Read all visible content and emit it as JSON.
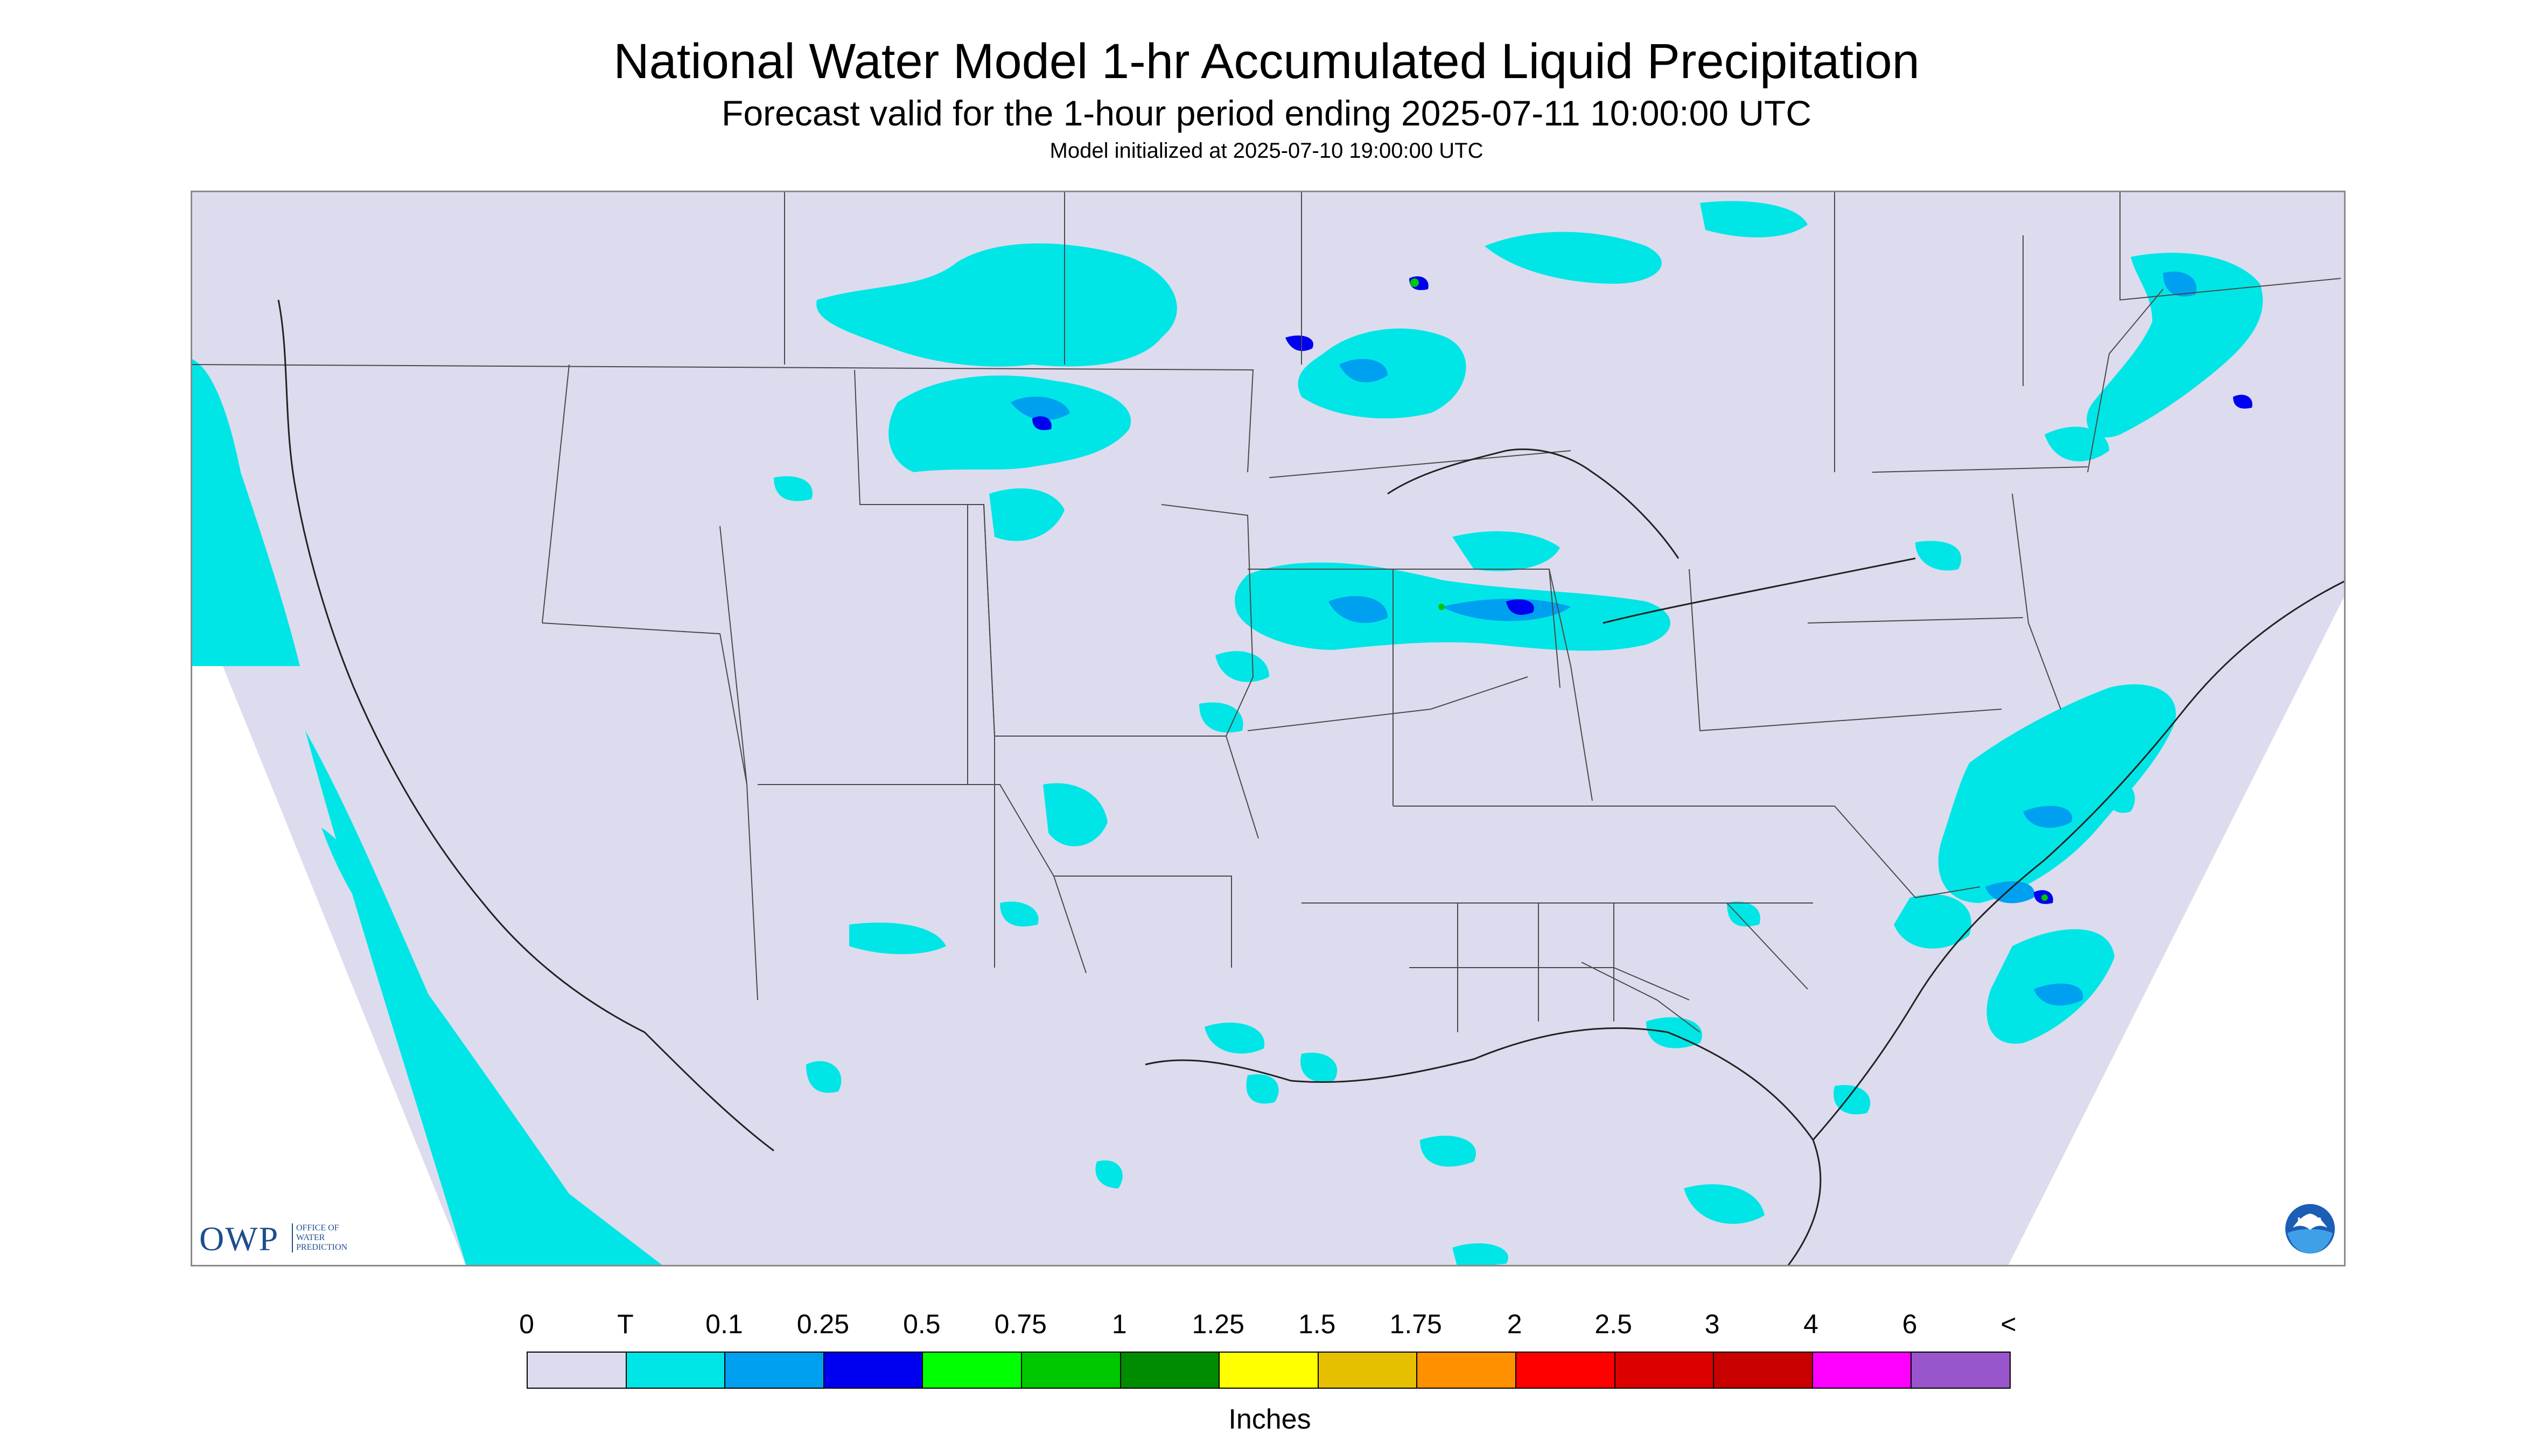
{
  "header": {
    "title": "National Water Model 1-hr Accumulated Liquid Precipitation",
    "subtitle": "Forecast valid for the 1-hour period ending 2025-07-11 10:00:00 UTC",
    "init_line": "Model initialized at 2025-07-10 19:00:00 UTC"
  },
  "map": {
    "background_color": "#dcdcee",
    "outside_domain_color": "#ffffff",
    "border_color": "#4a4a4a",
    "icons": [
      "us-state-boundaries",
      "international-borders",
      "coastlines",
      "great-lakes"
    ]
  },
  "logos": {
    "owp": {
      "main": "OWP",
      "sub": "OFFICE OF WATER PREDICTION"
    },
    "noaa": {
      "text": "NOAA"
    }
  },
  "legend": {
    "ticks": [
      "0",
      "T",
      "0.1",
      "0.25",
      "0.5",
      "0.75",
      "1",
      "1.25",
      "1.5",
      "1.75",
      "2",
      "2.5",
      "3",
      "4",
      "6",
      "<"
    ],
    "colors": [
      "#dcdcee",
      "#00e6e6",
      "#00a0f0",
      "#0000f0",
      "#00ff00",
      "#00c800",
      "#008c00",
      "#ffff00",
      "#e6c000",
      "#ff9000",
      "#ff0000",
      "#dc0000",
      "#c80000",
      "#ff00ff",
      "#9955cc"
    ],
    "units": "Inches"
  }
}
